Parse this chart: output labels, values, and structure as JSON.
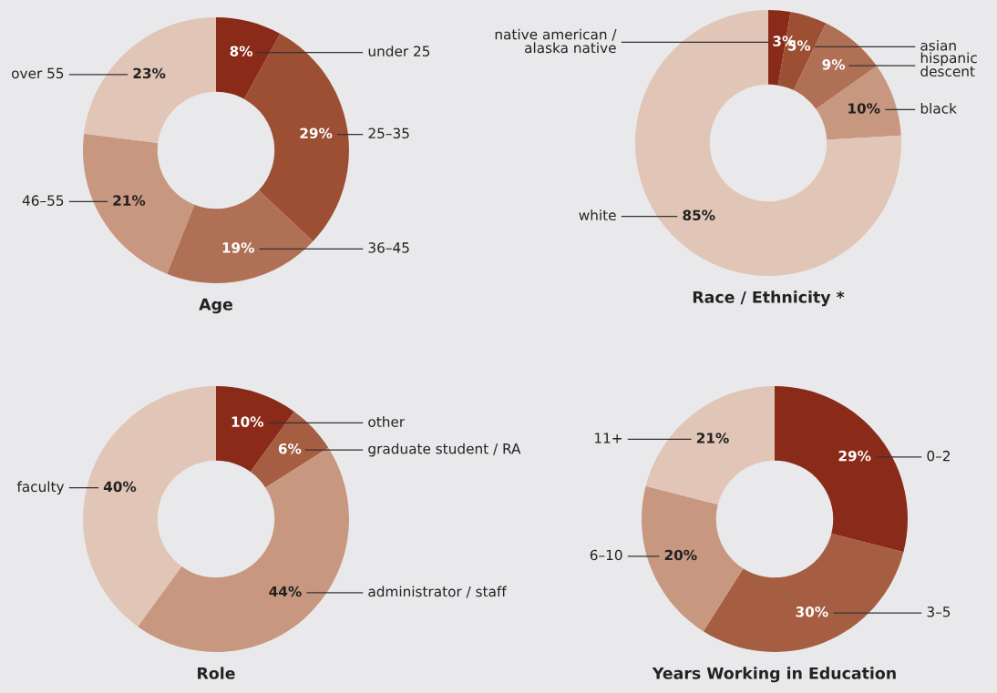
{
  "chart_data": [
    {
      "type": "donut",
      "title": "Age",
      "categories": [
        "under 25",
        "25–35",
        "36–45",
        "46–55",
        "over 55"
      ],
      "values": [
        8,
        29,
        19,
        21,
        23
      ],
      "value_labels": [
        "8%",
        "29%",
        "19%",
        "21%",
        "23%"
      ],
      "colors": [
        "#8a2a18",
        "#9c4f33",
        "#b07055",
        "#c8977f",
        "#e1c5b6"
      ],
      "legend": false
    },
    {
      "type": "donut",
      "title": "Race / Ethnicity *",
      "categories": [
        "native american /\nalaska native",
        "asian",
        "hispanic\ndescent",
        "black",
        "white"
      ],
      "values": [
        3,
        5,
        9,
        10,
        85
      ],
      "value_labels": [
        "3%",
        "5%",
        "9%",
        "10%",
        "85%"
      ],
      "colors": [
        "#8a2a18",
        "#9c4f33",
        "#b07055",
        "#c8977f",
        "#e1c5b6"
      ],
      "legend": false
    },
    {
      "type": "donut",
      "title": "Role",
      "categories": [
        "other",
        "graduate student / RA",
        "administrator / staff",
        "faculty"
      ],
      "values": [
        10,
        6,
        44,
        40
      ],
      "value_labels": [
        "10%",
        "6%",
        "44%",
        "40%"
      ],
      "colors": [
        "#8a2a18",
        "#a55e42",
        "#c8977f",
        "#e1c5b6"
      ],
      "legend": false
    },
    {
      "type": "donut",
      "title": "Years Working in Education",
      "categories": [
        "0–2",
        "3–5",
        "6–10",
        "11+"
      ],
      "values": [
        29,
        30,
        20,
        21
      ],
      "value_labels": [
        "29%",
        "30%",
        "20%",
        "21%"
      ],
      "colors": [
        "#8a2a18",
        "#a55e42",
        "#c8977f",
        "#e1c5b6"
      ],
      "legend": false
    }
  ]
}
